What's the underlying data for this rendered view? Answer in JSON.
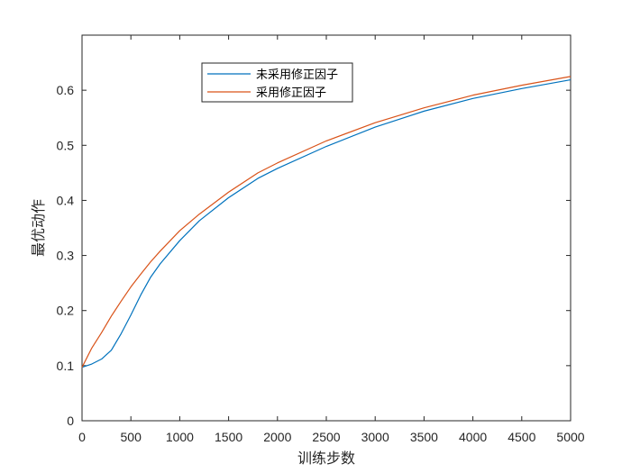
{
  "chart_data": {
    "type": "line",
    "title": "",
    "xlabel": "训练步数",
    "ylabel": "最优动作",
    "xlim": [
      0,
      5000
    ],
    "ylim": [
      0,
      0.7
    ],
    "xticks": [
      0,
      500,
      1000,
      1500,
      2000,
      2500,
      3000,
      3500,
      4000,
      4500,
      5000
    ],
    "yticks": [
      0,
      0.1,
      0.2,
      0.3,
      0.4,
      0.5,
      0.6
    ],
    "grid": false,
    "legend_position": "top-left",
    "series": [
      {
        "name": "未采用修正因子",
        "color": "#0072BD",
        "x": [
          0,
          100,
          200,
          300,
          400,
          500,
          600,
          700,
          800,
          1000,
          1200,
          1500,
          1800,
          2000,
          2500,
          3000,
          3500,
          4000,
          4500,
          5000
        ],
        "y": [
          0.097,
          0.103,
          0.112,
          0.128,
          0.158,
          0.192,
          0.228,
          0.26,
          0.285,
          0.327,
          0.363,
          0.405,
          0.44,
          0.458,
          0.498,
          0.533,
          0.562,
          0.585,
          0.603,
          0.619
        ]
      },
      {
        "name": "采用修正因子",
        "color": "#D95319",
        "x": [
          0,
          100,
          200,
          300,
          400,
          500,
          600,
          700,
          800,
          1000,
          1200,
          1500,
          1800,
          2000,
          2500,
          3000,
          3500,
          4000,
          4500,
          5000
        ],
        "y": [
          0.097,
          0.132,
          0.16,
          0.19,
          0.217,
          0.243,
          0.266,
          0.288,
          0.308,
          0.345,
          0.375,
          0.415,
          0.45,
          0.468,
          0.508,
          0.541,
          0.568,
          0.591,
          0.609,
          0.625
        ]
      }
    ]
  }
}
